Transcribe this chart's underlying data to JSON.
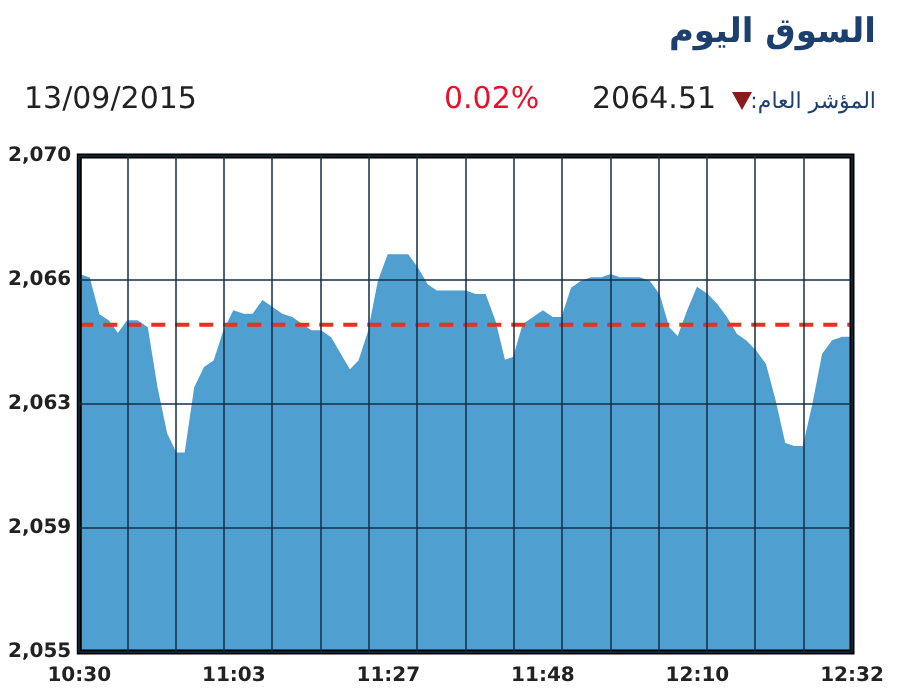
{
  "chart_data": {
    "type": "area",
    "title": "السوق اليوم",
    "annotations": [
      "المؤشر العام:",
      "2064.51",
      "0.02%",
      "13/09/2015"
    ],
    "categories": [
      "10:30",
      null,
      null,
      null,
      null,
      null,
      null,
      null,
      null,
      null,
      null,
      null,
      null,
      null,
      null,
      null,
      "11:03",
      null,
      null,
      null,
      null,
      null,
      null,
      null,
      null,
      null,
      null,
      null,
      null,
      null,
      null,
      null,
      "11:27",
      null,
      null,
      null,
      null,
      null,
      null,
      null,
      null,
      null,
      null,
      null,
      null,
      null,
      null,
      null,
      "11:48",
      null,
      null,
      null,
      null,
      null,
      null,
      null,
      null,
      null,
      null,
      null,
      null,
      null,
      null,
      null,
      "12:10",
      null,
      null,
      null,
      null,
      null,
      null,
      null,
      null,
      null,
      null,
      null,
      null,
      null,
      null,
      null,
      "12:32"
    ],
    "series": [
      {
        "color": "#4f9fd1",
        "values": [
          2066.4,
          2066.3,
          2065.2,
          2065.0,
          2064.6,
          2065.0,
          2065.0,
          2064.8,
          2063.0,
          2061.6,
          2061.0,
          2061.0,
          2063.0,
          2063.6,
          2063.8,
          2064.7,
          2065.3,
          2065.2,
          2065.2,
          2065.6,
          2065.4,
          2065.2,
          2065.1,
          2064.9,
          2064.7,
          2064.7,
          2064.5,
          2064.0,
          2063.5,
          2063.8,
          2064.7,
          2066.2,
          2067.0,
          2067.0,
          2067.0,
          2066.6,
          2066.1,
          2065.9,
          2065.9,
          2065.9,
          2065.9,
          2065.8,
          2065.8,
          2065.0,
          2063.8,
          2063.9,
          2064.9,
          2065.1,
          2065.3,
          2065.1,
          2065.1,
          2066.0,
          2066.2,
          2066.3,
          2066.3,
          2066.4,
          2066.3,
          2066.3,
          2066.3,
          2066.2,
          2065.8,
          2064.8,
          2064.5,
          2065.3,
          2066.0,
          2065.8,
          2065.5,
          2065.1,
          2064.6,
          2064.4,
          2064.1,
          2063.7,
          2062.6,
          2061.3,
          2061.2,
          2061.2,
          2062.5,
          2064.0,
          2064.4,
          2064.5,
          2064.5
        ]
      }
    ],
    "ylim": [
      2055,
      2070
    ],
    "yticks": [
      {
        "value": 2055,
        "label": "2,055"
      },
      {
        "value": 2058.75,
        "label": "2,059"
      },
      {
        "value": 2062.5,
        "label": "2,063"
      },
      {
        "value": 2066.25,
        "label": "2,066"
      },
      {
        "value": 2070,
        "label": "2,070"
      }
    ],
    "ref_lines": [
      {
        "axis": "y",
        "value": 2064.9,
        "color": "#e8311f",
        "line_style": "dashed"
      }
    ],
    "grid": true,
    "legend": false
  }
}
